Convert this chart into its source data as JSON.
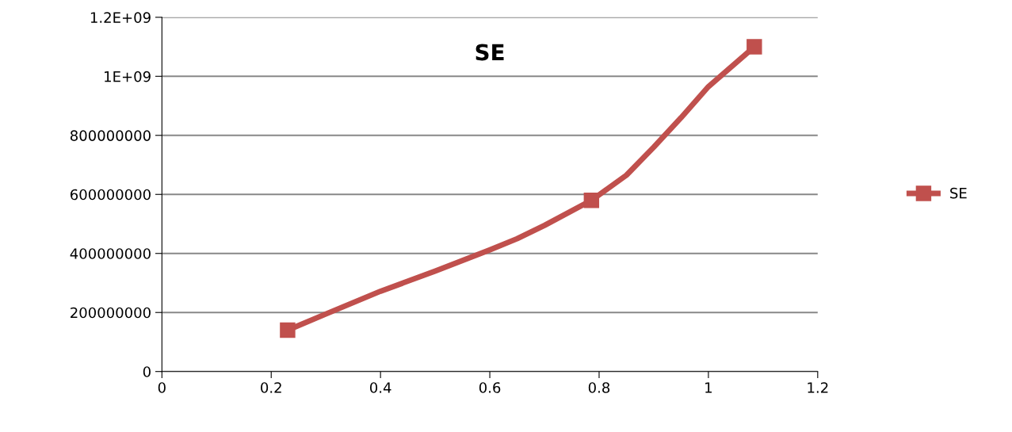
{
  "chart_data": {
    "type": "line",
    "title": "SE",
    "series": [
      {
        "color": "#c0504d",
        "marker": "none",
        "x": [
          0.23,
          0.3,
          0.4,
          0.5,
          0.6,
          0.65,
          0.7,
          0.786,
          0.85,
          0.9,
          0.95,
          1.0,
          1.084
        ],
        "values": [
          140000000,
          195000000,
          272000000,
          340000000,
          412000000,
          450000000,
          495000000,
          580000000,
          665000000,
          760000000,
          860000000,
          965000000,
          1100000000
        ]
      },
      {
        "type": "scatter",
        "name": "SE",
        "color": "#c0504d",
        "x": [
          0.23,
          0.786,
          1.084
        ],
        "values": [
          140000000,
          580000000,
          1100000000
        ]
      }
    ],
    "xlim": [
      0,
      1.2
    ],
    "xticks": [
      0,
      0.2,
      0.4,
      0.6,
      0.8,
      1,
      1.2
    ],
    "ylim": [
      0,
      1200000000
    ],
    "yticks": [
      0,
      {
        "value": 200000000,
        "label": "200000000"
      },
      {
        "value": 400000000,
        "label": "400000000"
      },
      {
        "value": 600000000,
        "label": "600000000"
      },
      {
        "value": 800000000,
        "label": "800000000"
      },
      {
        "value": 1000000000,
        "label": "1E+09"
      },
      {
        "value": 1200000000,
        "label": "1.2E+09"
      }
    ],
    "grid": "y",
    "legend": "right",
    "marker": "square",
    "line_style": "solid"
  }
}
